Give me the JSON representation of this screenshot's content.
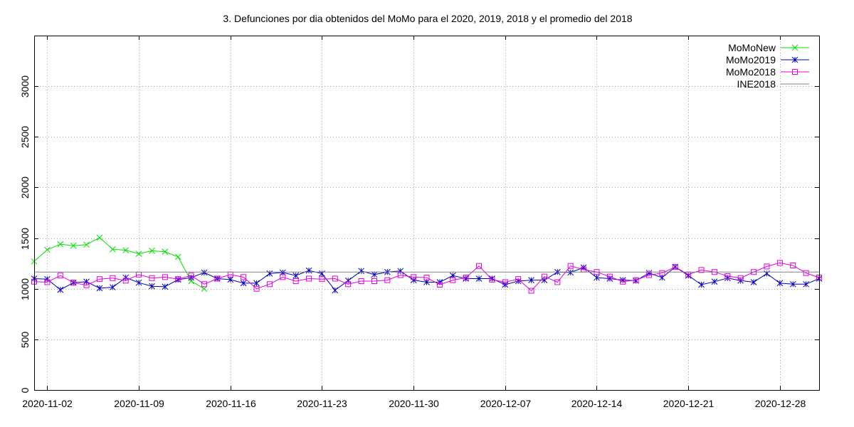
{
  "chart_data": {
    "type": "line",
    "title": "3. Defunciones por dia obtenidos del MoMo para el 2020, 2019, 2018 y el promedio del 2018",
    "xlabel": "",
    "ylabel": "",
    "x_range": [
      "2020-11-01",
      "2020-12-31"
    ],
    "ylim": [
      0,
      3500
    ],
    "y_ticks": [
      0,
      500,
      1000,
      1500,
      2000,
      2500,
      3000
    ],
    "x_ticks": [
      "2020-11-02",
      "2020-11-09",
      "2020-11-16",
      "2020-11-23",
      "2020-11-30",
      "2020-12-07",
      "2020-12-14",
      "2020-12-21",
      "2020-12-28"
    ],
    "grid": true,
    "legend_position": "top-right",
    "series": [
      {
        "name": "MoMoNew",
        "color": "#00e000",
        "marker": "x",
        "start_date": "2020-11-01",
        "values": [
          1270,
          1385,
          1440,
          1425,
          1435,
          1505,
          1390,
          1380,
          1345,
          1375,
          1365,
          1315,
          1075,
          1000
        ]
      },
      {
        "name": "MoMo2019",
        "color": "#0000c0",
        "marker": "asterisk",
        "start_date": "2020-11-01",
        "values": [
          1100,
          1095,
          990,
          1060,
          1070,
          1005,
          1015,
          1110,
          1060,
          1025,
          1020,
          1090,
          1110,
          1160,
          1100,
          1090,
          1055,
          1055,
          1150,
          1160,
          1130,
          1180,
          1150,
          985,
          1080,
          1175,
          1140,
          1165,
          1175,
          1085,
          1065,
          1065,
          1130,
          1100,
          1100,
          1100,
          1040,
          1075,
          1085,
          1085,
          1165,
          1160,
          1210,
          1110,
          1100,
          1085,
          1080,
          1155,
          1110,
          1215,
          1130,
          1040,
          1070,
          1105,
          1080,
          1065,
          1150,
          1055,
          1045,
          1045,
          1100
        ]
      },
      {
        "name": "MoMo2018",
        "color": "#e000e0",
        "marker": "square",
        "start_date": "2020-11-01",
        "values": [
          1070,
          1065,
          1130,
          1060,
          1035,
          1095,
          1105,
          1080,
          1140,
          1105,
          1115,
          1095,
          1130,
          1045,
          1100,
          1140,
          1115,
          1000,
          1045,
          1115,
          1075,
          1100,
          1095,
          1100,
          1045,
          1075,
          1075,
          1085,
          1135,
          1115,
          1110,
          1040,
          1085,
          1110,
          1225,
          1090,
          1065,
          1095,
          980,
          1120,
          1065,
          1225,
          1190,
          1165,
          1120,
          1070,
          1085,
          1135,
          1155,
          1215,
          1140,
          1185,
          1165,
          1125,
          1105,
          1165,
          1220,
          1255,
          1230,
          1155,
          1110
        ]
      },
      {
        "name": "INE2018",
        "color": "#808080",
        "marker": "none",
        "constant": 1165
      }
    ]
  }
}
